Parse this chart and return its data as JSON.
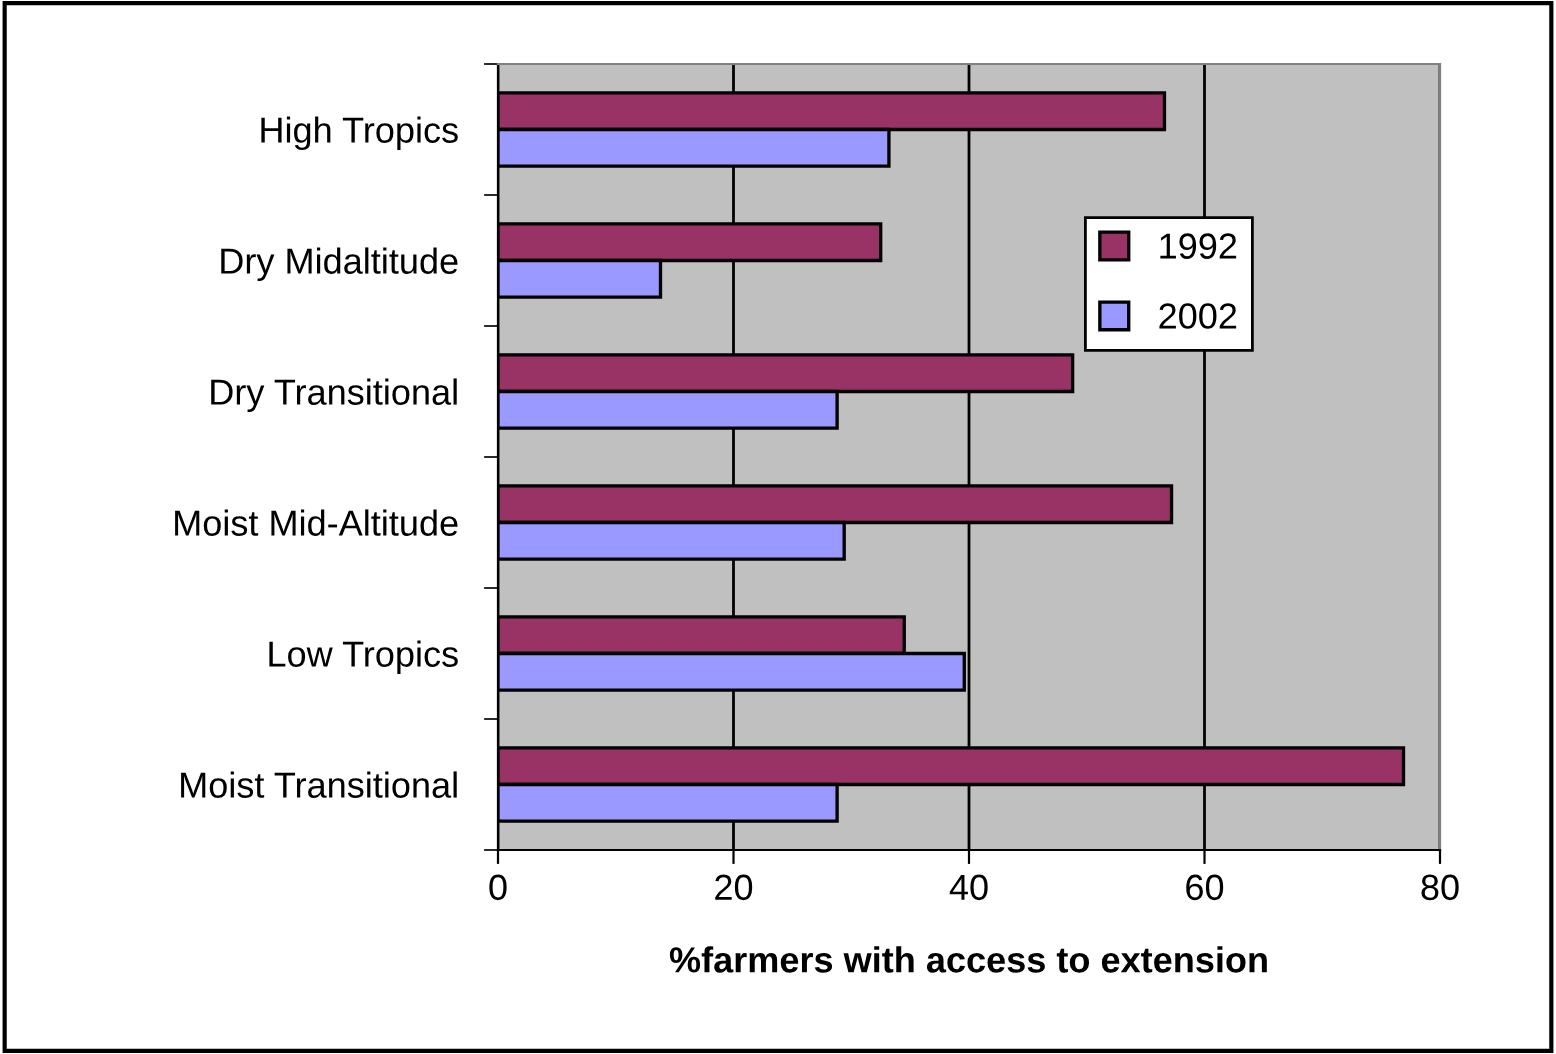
{
  "chart_data": {
    "type": "bar",
    "orientation": "horizontal",
    "xlabel": "%farmers with access to extension",
    "categories": [
      "High Tropics",
      "Dry Midaltitude",
      "Dry Transitional",
      "Moist Mid-Altitude",
      "Low Tropics",
      "Moist Transitional"
    ],
    "series": [
      {
        "name": "1992",
        "color": "#993366",
        "values": [
          56.6,
          32.5,
          48.8,
          57.2,
          34.5,
          76.9
        ]
      },
      {
        "name": "2002",
        "color": "#9999ff",
        "values": [
          33.2,
          13.8,
          28.8,
          29.4,
          39.6,
          28.8
        ]
      }
    ],
    "xlim": [
      0,
      80
    ],
    "xticks": [
      0,
      20,
      40,
      60,
      80
    ],
    "grid": "x",
    "legend": "right"
  }
}
